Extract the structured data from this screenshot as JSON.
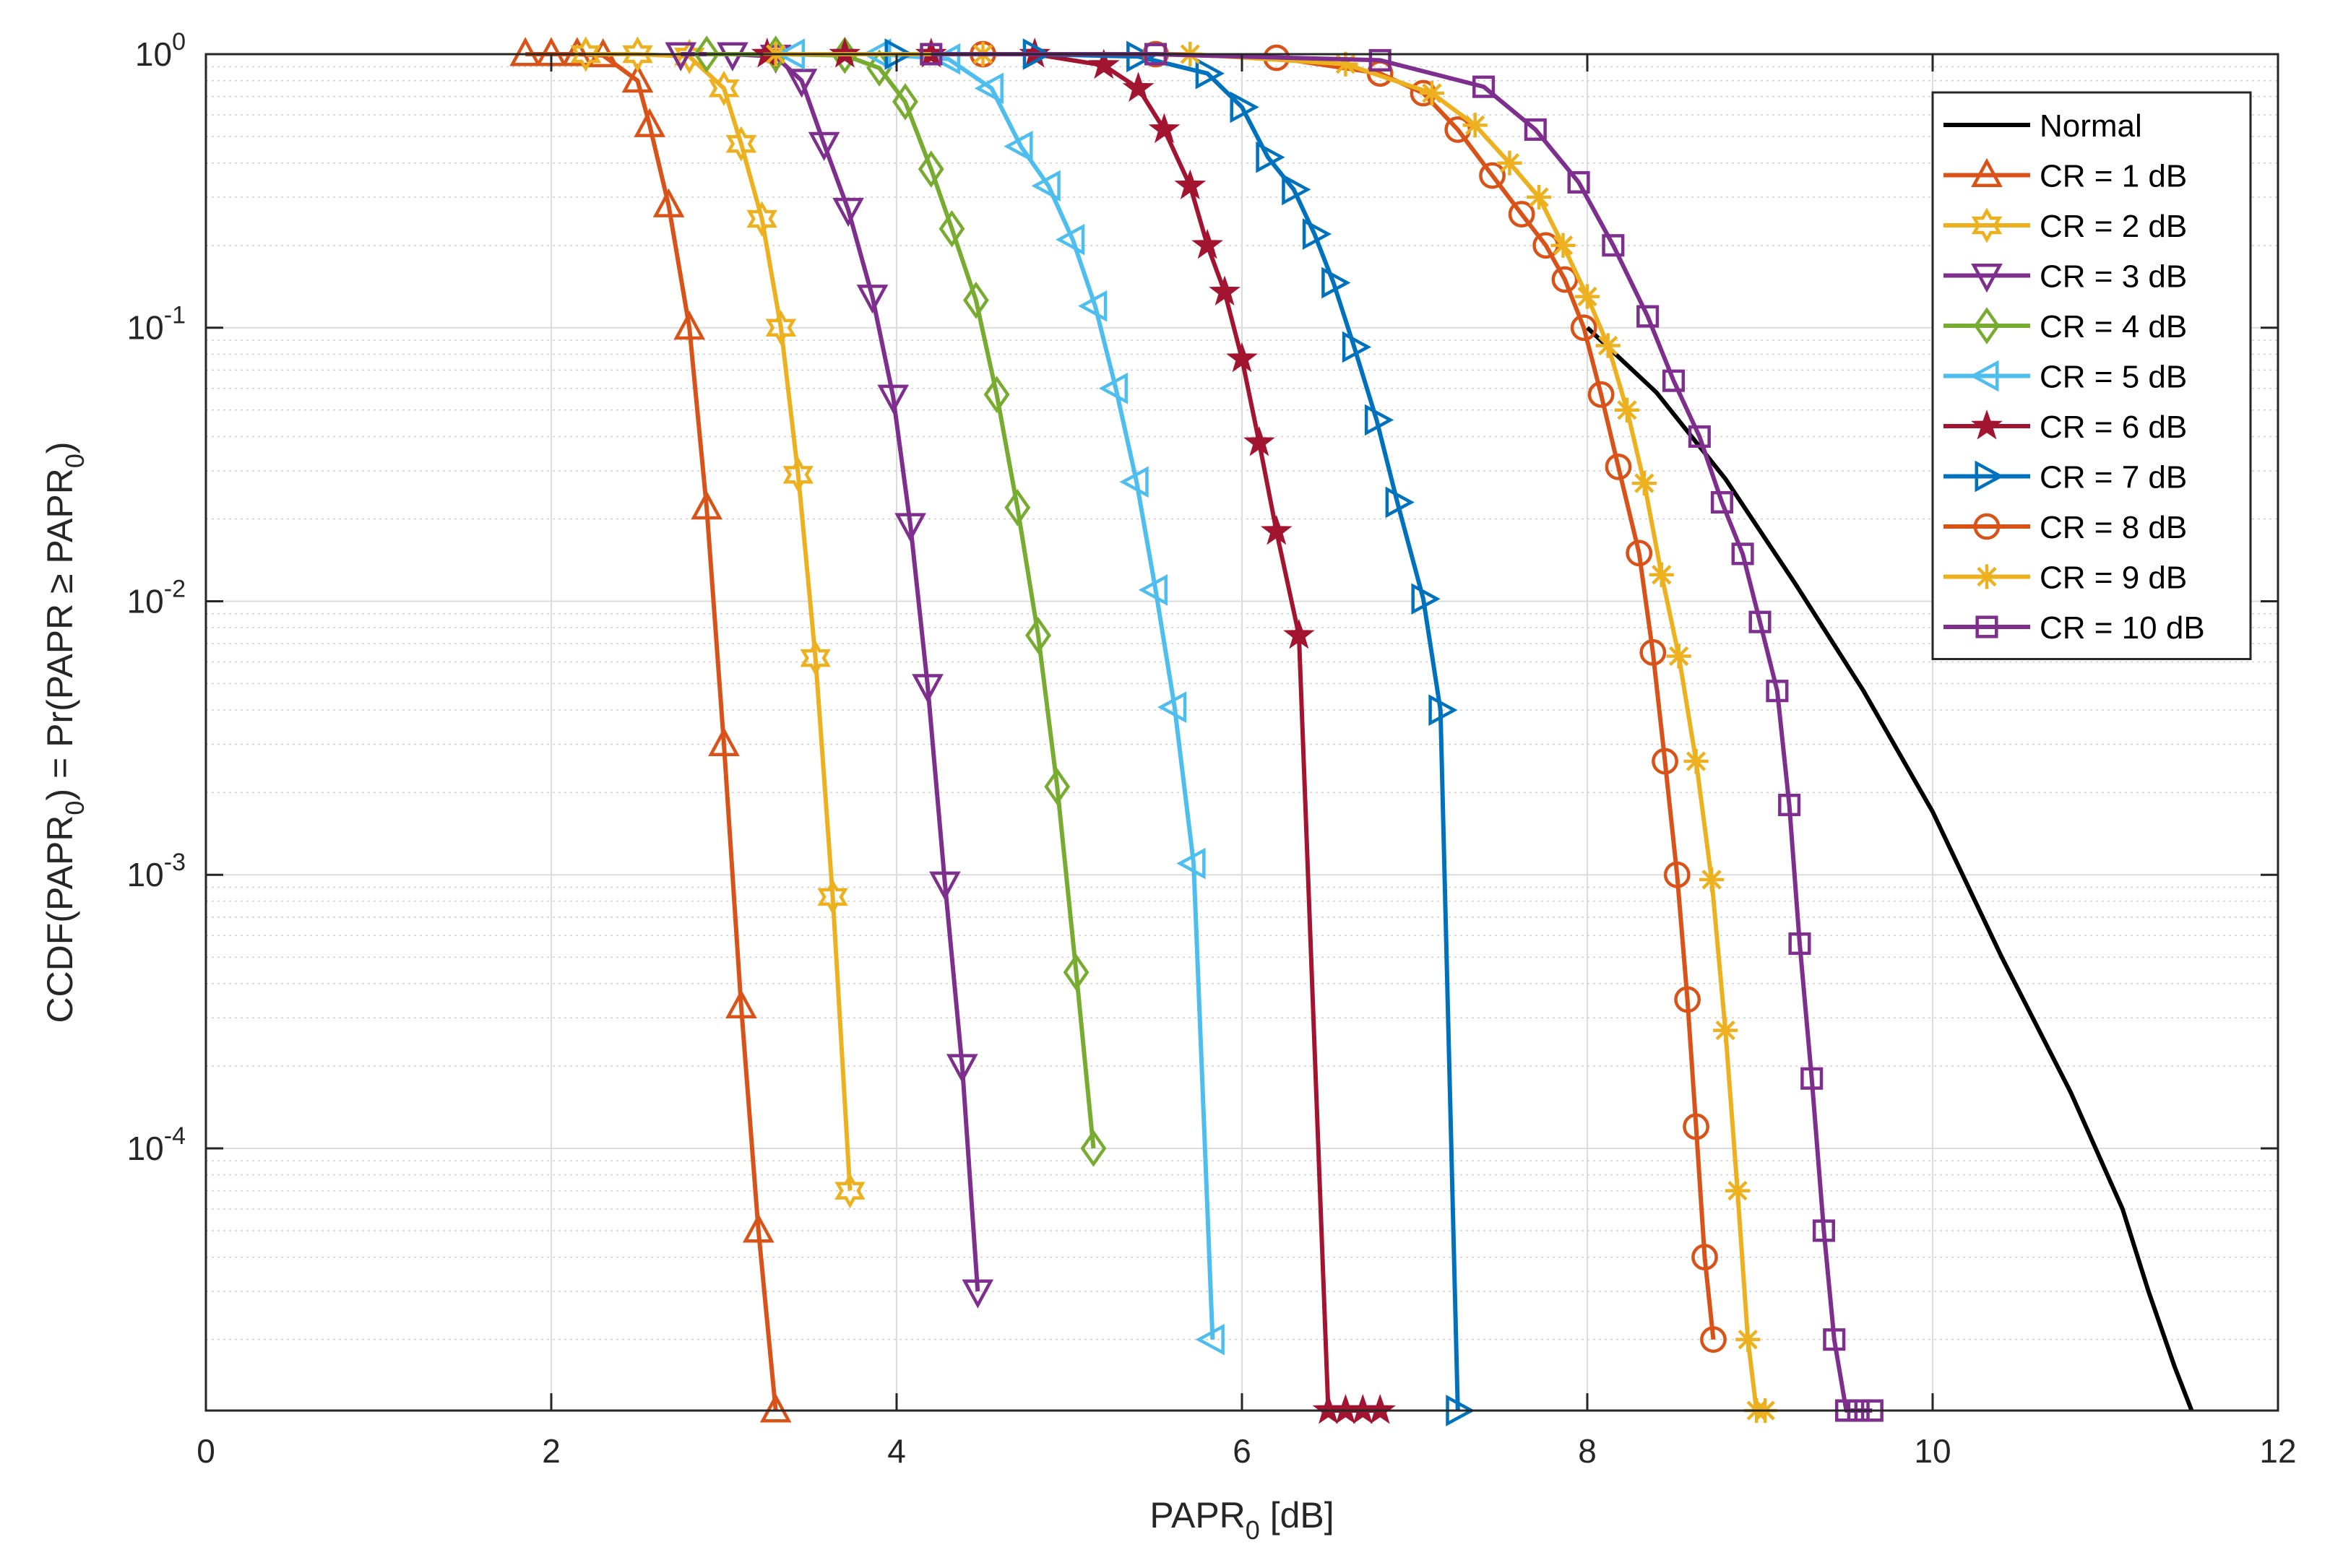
{
  "chart_data": {
    "type": "line",
    "xlabel": "PAPR",
    "xlabel_sub": "0",
    "xlabel_suffix": " [dB]",
    "ylabel": "CCDF(PAPR_0) = Pr(PAPR ≥ PAPR_0)",
    "xlim": [
      0,
      12
    ],
    "ylim": [
      1.1e-05,
      1
    ],
    "yscale": "log",
    "grid": true,
    "minor_grid": true,
    "legend_position": "top-right",
    "x_ticks": [
      {
        "value": 0,
        "label": "0"
      },
      {
        "value": 2,
        "label": "2"
      },
      {
        "value": 4,
        "label": "4"
      },
      {
        "value": 6,
        "label": "6"
      },
      {
        "value": 8,
        "label": "8"
      },
      {
        "value": 10,
        "label": "10"
      },
      {
        "value": 12,
        "label": "12"
      }
    ],
    "y_ticks": [
      {
        "value": 1,
        "base": "10",
        "exp": "0"
      },
      {
        "value": 0.1,
        "base": "10",
        "exp": "-1"
      },
      {
        "value": 0.01,
        "base": "10",
        "exp": "-2"
      },
      {
        "value": 0.001,
        "base": "10",
        "exp": "-3"
      },
      {
        "value": 0.0001,
        "base": "10",
        "exp": "-4"
      }
    ],
    "series": [
      {
        "name": "Normal",
        "color": "#000000",
        "marker": "none",
        "x": [
          8.0,
          8.4,
          8.8,
          9.2,
          9.6,
          10.0,
          10.4,
          10.8,
          11.1,
          11.25,
          11.4,
          11.5
        ],
        "y": [
          0.1,
          0.058,
          0.028,
          0.0117,
          0.0047,
          0.0017,
          0.0005,
          0.00016,
          6e-05,
          3e-05,
          1.6e-05,
          1.1e-05
        ]
      },
      {
        "name": "CR = 1 dB",
        "color": "#D95319",
        "marker": "triangle-up",
        "x": [
          1.85,
          2.0,
          2.15,
          2.3,
          2.5,
          2.57,
          2.68,
          2.8,
          2.9,
          3.0,
          3.1,
          3.2,
          3.3
        ],
        "y": [
          1.0,
          1.0,
          1.0,
          0.99,
          0.8,
          0.55,
          0.28,
          0.1,
          0.022,
          0.003,
          0.00033,
          5e-05,
          1.05e-05
        ]
      },
      {
        "name": "CR = 2 dB",
        "color": "#EDB120",
        "marker": "hexagram",
        "x": [
          2.2,
          2.5,
          2.8,
          3.0,
          3.1,
          3.22,
          3.33,
          3.43,
          3.53,
          3.63,
          3.73
        ],
        "y": [
          1.0,
          1.0,
          0.98,
          0.75,
          0.47,
          0.25,
          0.1,
          0.029,
          0.0062,
          0.00083,
          7e-05
        ]
      },
      {
        "name": "CR = 3 dB",
        "color": "#7E2F8E",
        "marker": "triangle-down",
        "x": [
          2.75,
          3.05,
          3.3,
          3.45,
          3.58,
          3.72,
          3.86,
          3.98,
          4.08,
          4.18,
          4.28,
          4.38,
          4.47
        ],
        "y": [
          1.0,
          1.0,
          0.98,
          0.8,
          0.47,
          0.27,
          0.13,
          0.056,
          0.019,
          0.0049,
          0.00093,
          0.0002,
          3e-05
        ]
      },
      {
        "name": "CR = 4 dB",
        "color": "#77AC30",
        "marker": "diamond",
        "x": [
          2.9,
          3.3,
          3.7,
          3.9,
          4.05,
          4.2,
          4.32,
          4.46,
          4.58,
          4.7,
          4.82,
          4.93,
          5.04,
          5.14
        ],
        "y": [
          1.0,
          1.0,
          0.99,
          0.89,
          0.67,
          0.38,
          0.23,
          0.126,
          0.057,
          0.022,
          0.0075,
          0.0021,
          0.00044,
          0.0001
        ]
      },
      {
        "name": "CR = 5 dB",
        "color": "#4DBEEE",
        "marker": "triangle-left",
        "x": [
          3.4,
          3.9,
          4.3,
          4.55,
          4.72,
          4.88,
          5.02,
          5.15,
          5.27,
          5.39,
          5.5,
          5.61,
          5.72,
          5.83
        ],
        "y": [
          1.0,
          1.0,
          0.96,
          0.75,
          0.46,
          0.33,
          0.21,
          0.12,
          0.06,
          0.0273,
          0.011,
          0.0041,
          0.0011,
          2e-05
        ]
      },
      {
        "name": "CR = 6 dB",
        "color": "#A2142F",
        "marker": "pentagram",
        "x": [
          3.25,
          3.7,
          4.2,
          4.8,
          5.2,
          5.4,
          5.55,
          5.7,
          5.8,
          5.9,
          6.0,
          6.1,
          6.2,
          6.33,
          6.5,
          6.6,
          6.7,
          6.8
        ],
        "y": [
          1.0,
          1.0,
          1.0,
          1.0,
          0.91,
          0.75,
          0.53,
          0.33,
          0.2,
          0.135,
          0.077,
          0.038,
          0.018,
          0.0075,
          1.05e-05,
          1.05e-05,
          1.05e-05,
          1.05e-05
        ]
      },
      {
        "name": "CR = 7 dB",
        "color": "#0072BD",
        "marker": "triangle-right",
        "x": [
          4.0,
          4.8,
          5.4,
          5.8,
          6.0,
          6.15,
          6.3,
          6.42,
          6.53,
          6.65,
          6.78,
          6.9,
          7.05,
          7.15,
          7.25
        ],
        "y": [
          1.0,
          1.0,
          0.98,
          0.85,
          0.64,
          0.42,
          0.32,
          0.22,
          0.146,
          0.085,
          0.046,
          0.023,
          0.0102,
          0.004,
          1.05e-05
        ]
      },
      {
        "name": "CR = 8 dB",
        "color": "#D95319",
        "marker": "circle",
        "x": [
          4.5,
          5.5,
          6.2,
          6.8,
          7.05,
          7.25,
          7.45,
          7.62,
          7.76,
          7.87,
          7.98,
          8.08
        ],
        "y": [
          1.0,
          1.0,
          0.97,
          0.85,
          0.72,
          0.53,
          0.36,
          0.26,
          0.2,
          0.15,
          0.1,
          0.057
        ]
      },
      {
        "name": "CR = 9 dB",
        "color": "#EDB120",
        "marker": "asterisk",
        "x": [
          3.3,
          4.5,
          5.7,
          6.6,
          7.1,
          7.35,
          7.55,
          7.72,
          7.86,
          8.0,
          8.12,
          8.23,
          8.33,
          8.43
        ],
        "y": [
          1.0,
          1.0,
          1.0,
          0.92,
          0.72,
          0.55,
          0.4,
          0.3,
          0.2,
          0.13,
          0.086,
          0.05,
          0.027,
          0.0125
        ]
      },
      {
        "name": "CR = 10 dB",
        "color": "#7E2F8E",
        "marker": "square",
        "x": [
          4.2,
          5.5,
          6.8,
          7.4,
          7.7,
          7.95,
          8.15,
          8.35,
          8.5,
          8.65,
          8.78,
          8.9,
          9.0,
          9.1
        ],
        "y": [
          1.0,
          1.0,
          0.95,
          0.76,
          0.53,
          0.34,
          0.2,
          0.11,
          0.064,
          0.04,
          0.023,
          0.0149,
          0.0084,
          0.0047
        ]
      }
    ],
    "tail_series": [
      {
        "name": "CR = 8 dB",
        "x": [
          8.18,
          8.3,
          8.38,
          8.45,
          8.52,
          8.58,
          8.63,
          8.68,
          8.73
        ],
        "y": [
          0.031,
          0.015,
          0.0065,
          0.0026,
          0.001,
          0.00035,
          0.00012,
          4e-05,
          2e-05
        ]
      },
      {
        "name": "CR = 9 dB",
        "x": [
          8.53,
          8.63,
          8.72,
          8.8,
          8.87,
          8.93,
          8.98,
          9.03
        ],
        "y": [
          0.0063,
          0.0026,
          0.00096,
          0.00027,
          7e-05,
          2e-05,
          1.05e-05,
          1.05e-05
        ]
      },
      {
        "name": "CR = 10 dB",
        "x": [
          9.17,
          9.23,
          9.3,
          9.37,
          9.43,
          9.5,
          9.57,
          9.65
        ],
        "y": [
          0.0018,
          0.00056,
          0.00018,
          5e-05,
          2e-05,
          1.05e-05,
          1.05e-05,
          1.05e-05
        ]
      }
    ]
  }
}
